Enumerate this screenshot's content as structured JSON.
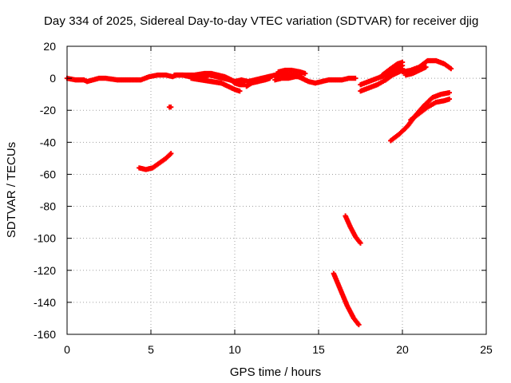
{
  "chart_data": {
    "type": "scatter",
    "title": "Day 334 of 2025, Sidereal Day-to-day VTEC variation (SDTVAR) for receiver djig",
    "xlabel": "GPS time / hours",
    "ylabel": "SDTVAR / TECUs",
    "xlim": [
      0,
      25
    ],
    "ylim": [
      -160,
      20
    ],
    "x_ticks": [
      0,
      5,
      10,
      15,
      20,
      25
    ],
    "y_ticks": [
      20,
      0,
      -20,
      -40,
      -60,
      -80,
      -100,
      -120,
      -140,
      -160
    ],
    "grid": true,
    "legend": "none",
    "marker_color": "#ff0000",
    "series": [
      {
        "x": [
          0.0,
          0.5,
          1.0,
          1.2,
          1.9,
          2.3,
          3.0,
          3.8,
          4.4,
          4.9,
          5.4,
          5.9,
          6.3,
          6.5,
          6.9,
          7.3,
          7.7,
          8.1,
          8.5,
          8.9,
          9.3,
          9.7,
          10.0,
          10.4,
          10.8,
          11.2,
          11.6,
          12.0,
          12.4,
          12.8,
          13.2,
          13.6,
          14.0,
          14.4,
          14.8,
          15.2,
          15.6,
          16.0,
          16.4,
          16.8,
          17.2
        ],
        "y": [
          0,
          -1,
          -1,
          -2,
          0,
          0,
          -1,
          -1,
          -1,
          1,
          2,
          2,
          1,
          2,
          2,
          1,
          2,
          1,
          2,
          1,
          0,
          -1,
          -2,
          -1,
          -2,
          -1,
          0,
          1,
          2,
          3,
          2,
          2,
          0,
          -2,
          -3,
          -2,
          -1,
          -1,
          -1,
          0,
          0
        ]
      },
      {
        "x": [
          6.4,
          7.0,
          7.6,
          8.2,
          8.6,
          9.0,
          9.4,
          9.8,
          10.0,
          10.3,
          10.6
        ],
        "y": [
          2,
          2,
          2,
          3,
          3,
          2,
          1,
          -1,
          -3,
          -4,
          -4
        ]
      },
      {
        "x": [
          7.4,
          8.0,
          8.6,
          9.2,
          9.6,
          10.0,
          10.3
        ],
        "y": [
          0,
          -1,
          -2,
          -3,
          -5,
          -7,
          -8
        ]
      },
      {
        "x": [
          10.7,
          11.0,
          11.4,
          11.8,
          12.1
        ],
        "y": [
          -5,
          -3,
          -2,
          -1,
          0
        ]
      },
      {
        "x": [
          12.6,
          13.0,
          13.4,
          13.9,
          14.2
        ],
        "y": [
          4,
          5,
          5,
          4,
          3
        ]
      },
      {
        "x": [
          12.4,
          12.8,
          13.2,
          13.6,
          14.0
        ],
        "y": [
          -1,
          0,
          0,
          1,
          1
        ]
      },
      {
        "x": [
          17.5,
          18.0,
          18.5,
          19.0,
          19.5,
          20.0
        ],
        "y": [
          -4,
          -2,
          0,
          2,
          5,
          8
        ]
      },
      {
        "x": [
          17.5,
          18.0,
          18.5,
          19.0,
          19.5,
          20.0
        ],
        "y": [
          -8,
          -6,
          -4,
          -1,
          3,
          6
        ]
      },
      {
        "x": [
          18.8,
          19.3,
          19.7,
          20.0
        ],
        "y": [
          2,
          6,
          9,
          10
        ]
      },
      {
        "x": [
          19.0,
          19.4,
          19.8,
          20.0
        ],
        "y": [
          -1,
          2,
          4,
          5
        ]
      },
      {
        "x": [
          20.0,
          20.5,
          21.0,
          21.5,
          22.0,
          22.5,
          22.9
        ],
        "y": [
          4,
          5,
          7,
          11,
          11,
          9,
          6
        ]
      },
      {
        "x": [
          20.2,
          20.6,
          21.0,
          21.4
        ],
        "y": [
          2,
          3,
          5,
          7
        ]
      },
      {
        "x": [
          19.3,
          19.8,
          20.3,
          20.8,
          21.3,
          21.8,
          22.3,
          22.8
        ],
        "y": [
          -39,
          -35,
          -30,
          -23,
          -17,
          -12,
          -10,
          -9
        ]
      },
      {
        "x": [
          20.5,
          21.0,
          21.5,
          22.0,
          22.5,
          22.8
        ],
        "y": [
          -26,
          -22,
          -18,
          -15,
          -14,
          -13
        ]
      },
      {
        "x": [
          4.3,
          4.7,
          5.1,
          5.5,
          5.9,
          6.2
        ],
        "y": [
          -56,
          -57,
          -56,
          -53,
          -50,
          -47
        ]
      },
      {
        "x": [
          6.1
        ],
        "y": [
          -18
        ]
      },
      {
        "x": [
          16.6,
          16.9,
          17.2,
          17.5
        ],
        "y": [
          -86,
          -93,
          -99,
          -103
        ]
      },
      {
        "x": [
          15.9,
          16.3,
          16.7,
          17.1,
          17.4
        ],
        "y": [
          -122,
          -132,
          -142,
          -150,
          -154
        ]
      }
    ]
  }
}
